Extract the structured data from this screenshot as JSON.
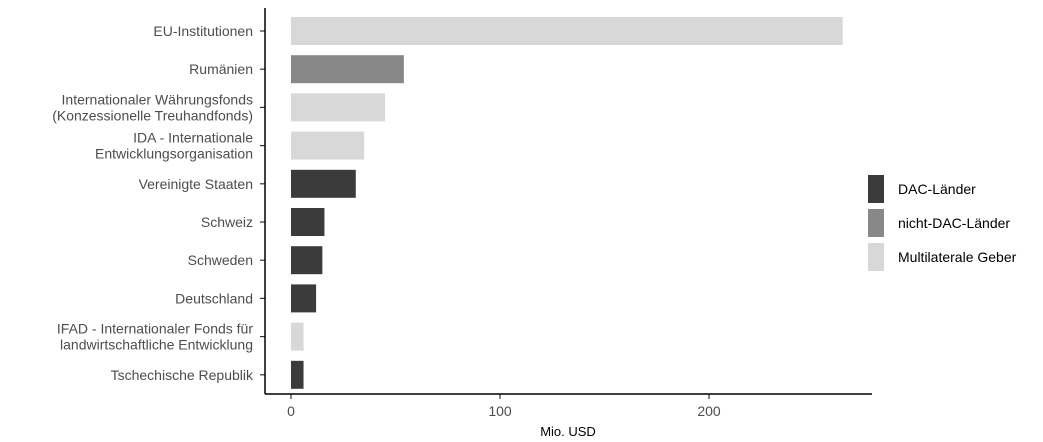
{
  "chart_data": {
    "type": "bar",
    "orientation": "horizontal",
    "title": "",
    "xlabel": "Mio. USD",
    "ylabel": "",
    "xlim": [
      0,
      265
    ],
    "x_ticks": [
      0,
      100,
      200
    ],
    "grid": false,
    "legend_position": "right",
    "categories": [
      [
        "EU-Institutionen"
      ],
      [
        "Rumänien"
      ],
      [
        "Internationaler Währungsfonds",
        "(Konzessionelle Treuhandfonds)"
      ],
      [
        "IDA - Internationale",
        "Entwicklungsorganisation"
      ],
      [
        "Vereinigte Staaten"
      ],
      [
        "Schweiz"
      ],
      [
        "Schweden"
      ],
      [
        "Deutschland"
      ],
      [
        "IFAD - Internationaler Fonds für",
        "landwirtschaftliche Entwicklung"
      ],
      [
        "Tschechische Republik"
      ]
    ],
    "values": [
      264,
      54,
      45,
      35,
      31,
      16,
      15,
      12,
      6,
      6
    ],
    "groups": [
      "Multilaterale Geber",
      "nicht-DAC-Länder",
      "Multilaterale Geber",
      "Multilaterale Geber",
      "DAC-Länder",
      "DAC-Länder",
      "DAC-Länder",
      "DAC-Länder",
      "Multilaterale Geber",
      "DAC-Länder"
    ],
    "legend": [
      {
        "label": "DAC-Länder",
        "color": "#3b3b3b"
      },
      {
        "label": "nicht-DAC-Länder",
        "color": "#878787"
      },
      {
        "label": "Multilaterale Geber",
        "color": "#d8d8d8"
      }
    ]
  }
}
